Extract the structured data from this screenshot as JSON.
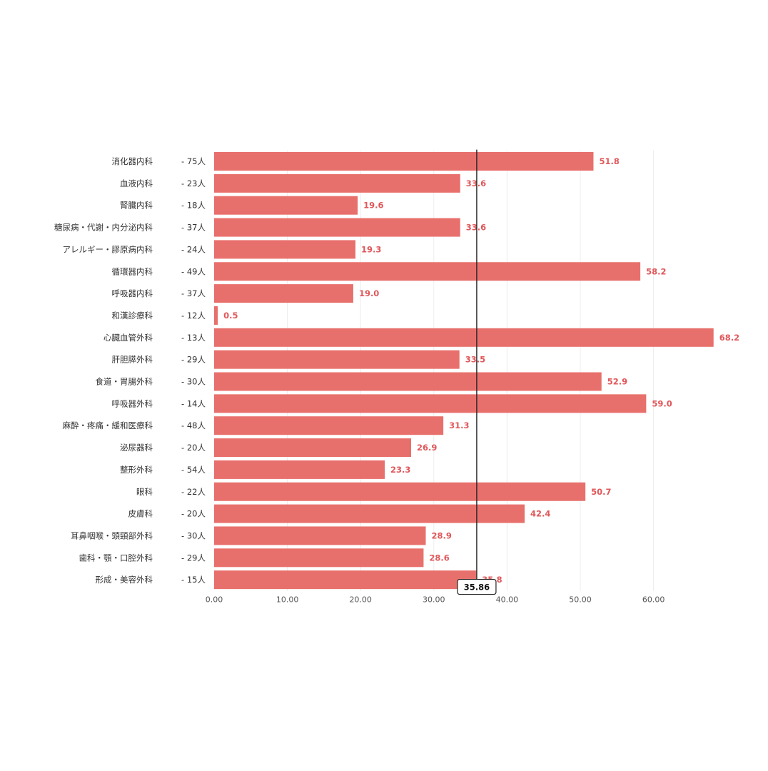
{
  "chart_data": {
    "type": "bar",
    "orientation": "horizontal",
    "categories": [
      "消化器内科",
      "血液内科",
      "腎臓内科",
      "糖尿病・代謝・内分泌内科",
      "アレルギー・膠原病内科",
      "循環器内科",
      "呼吸器内科",
      "和漢診療科",
      "心臓血管外科",
      "肝胆膵外科",
      "食道・胃腸外科",
      "呼吸器外科",
      "麻酔・疼痛・緩和医療科",
      "泌尿器科",
      "整形外科",
      "眼科",
      "皮膚科",
      "耳鼻咽喉・頭頸部外科",
      "歯科・顎・口腔外科",
      "形成・美容外科"
    ],
    "counts": [
      "- 75人",
      "- 23人",
      "- 18人",
      "- 37人",
      "- 24人",
      "- 49人",
      "- 37人",
      "- 12人",
      "- 13人",
      "- 29人",
      "- 30人",
      "- 14人",
      "- 48人",
      "- 20人",
      "- 54人",
      "- 22人",
      "- 20人",
      "- 30人",
      "- 29人",
      "- 15人"
    ],
    "values": [
      51.8,
      33.6,
      19.6,
      33.6,
      19.3,
      58.2,
      19.0,
      0.5,
      68.2,
      33.5,
      52.9,
      59.0,
      31.3,
      26.9,
      23.3,
      50.7,
      42.4,
      28.9,
      28.6,
      35.8
    ],
    "value_labels": [
      "51.8",
      "33.6",
      "19.6",
      "33.6",
      "19.3",
      "58.2",
      "19.0",
      "0.5",
      "68.2",
      "33.5",
      "52.9",
      "59.0",
      "31.3",
      "26.9",
      "23.3",
      "50.7",
      "42.4",
      "28.9",
      "28.6",
      "35.8"
    ],
    "x_ticks": [
      "0.00",
      "10.00",
      "20.00",
      "30.00",
      "40.00",
      "50.00",
      "60.00"
    ],
    "xlim": [
      0,
      68.2
    ],
    "reference_line": {
      "value": 35.86,
      "label": "35.86"
    },
    "grid": true,
    "legend": "none",
    "colors": {
      "bar": "#e8706c",
      "value_label": "#e0575a",
      "reference_line": "#222222",
      "grid": "#ececec",
      "text": "#333333",
      "axis_text": "#555555"
    }
  }
}
